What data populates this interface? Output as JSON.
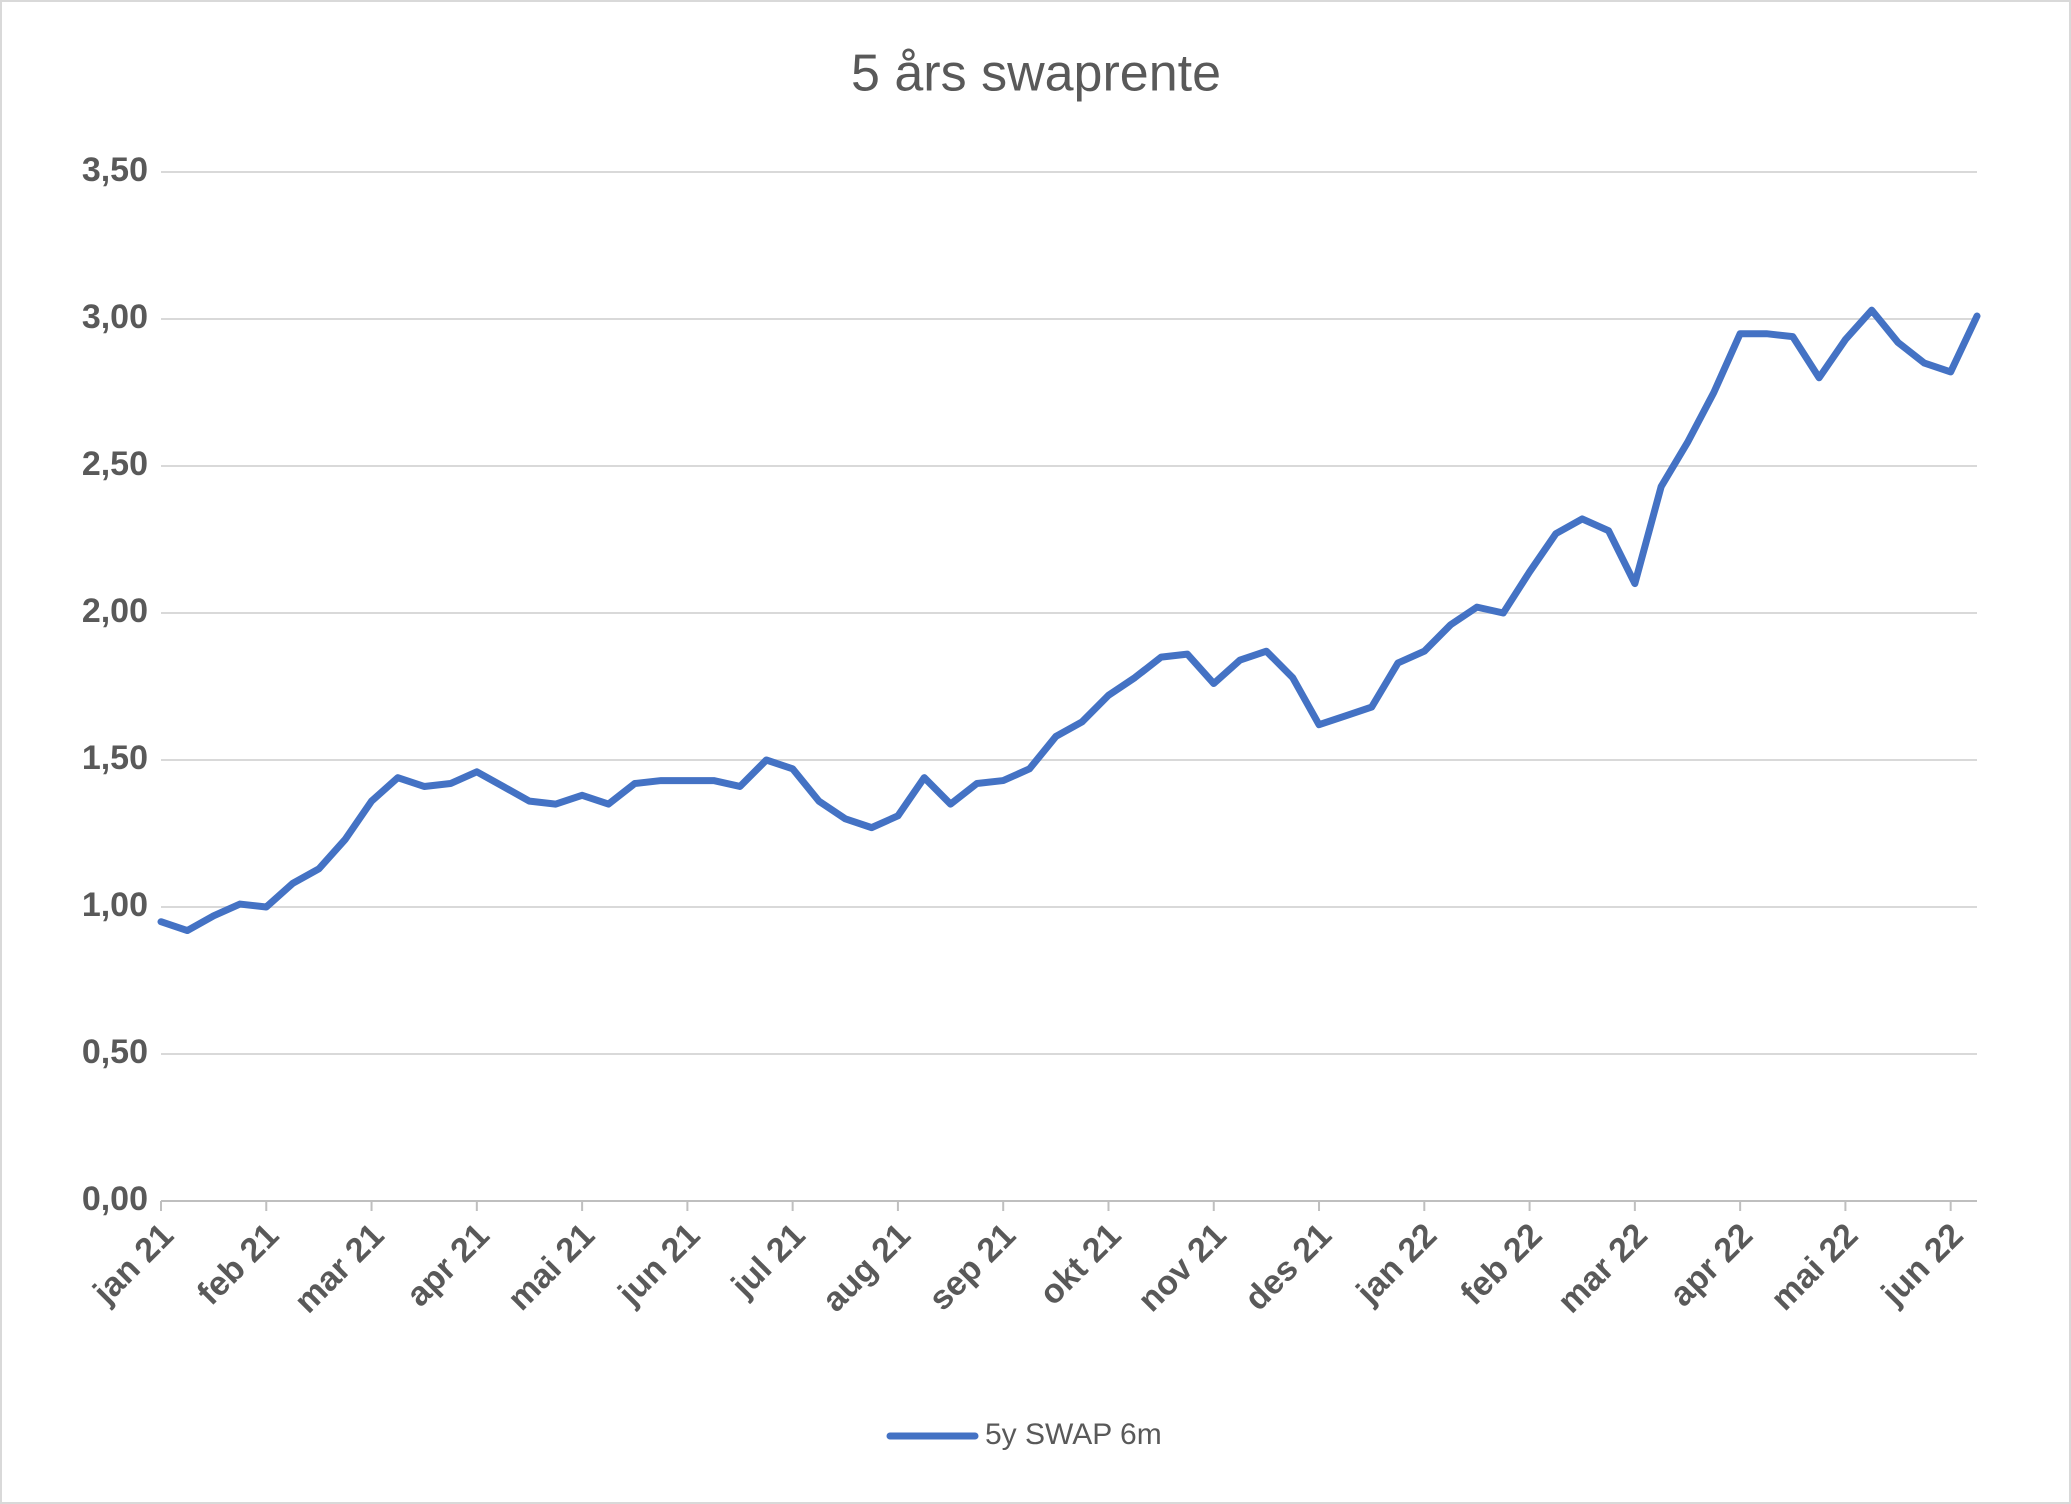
{
  "chart_data": {
    "type": "line",
    "title": "5 års swaprente",
    "categories": [
      "jan 21",
      null,
      null,
      null,
      "feb 21",
      null,
      null,
      null,
      "mar 21",
      null,
      null,
      null,
      "apr 21",
      null,
      null,
      null,
      "mai 21",
      null,
      null,
      null,
      "jun 21",
      null,
      null,
      null,
      "jul 21",
      null,
      null,
      null,
      "aug 21",
      null,
      null,
      null,
      "sep 21",
      null,
      null,
      null,
      "okt 21",
      null,
      null,
      null,
      "nov 21",
      null,
      null,
      null,
      "des 21",
      null,
      null,
      null,
      "jan 22",
      null,
      null,
      null,
      "feb 22",
      null,
      null,
      null,
      "mar 22",
      null,
      null,
      null,
      "apr 22",
      null,
      null,
      null,
      "mai 22",
      null,
      null,
      null,
      "jun 22",
      null
    ],
    "series": [
      {
        "name": "5y SWAP 6m",
        "color": "#4472c4",
        "values": [
          0.95,
          0.92,
          0.97,
          1.01,
          1.0,
          1.08,
          1.13,
          1.23,
          1.36,
          1.44,
          1.41,
          1.42,
          1.46,
          1.41,
          1.36,
          1.35,
          1.38,
          1.35,
          1.42,
          1.43,
          1.43,
          1.43,
          1.41,
          1.5,
          1.47,
          1.36,
          1.3,
          1.27,
          1.31,
          1.44,
          1.35,
          1.42,
          1.43,
          1.47,
          1.58,
          1.63,
          1.72,
          1.78,
          1.85,
          1.86,
          1.76,
          1.84,
          1.87,
          1.78,
          1.62,
          1.65,
          1.68,
          1.83,
          1.87,
          1.96,
          2.02,
          2.0,
          2.14,
          2.27,
          2.32,
          2.28,
          2.1,
          2.43,
          2.58,
          2.75,
          2.95,
          2.95,
          2.94,
          2.8,
          2.93,
          3.03,
          2.92,
          2.85,
          2.82,
          3.01
        ]
      }
    ],
    "ylim": [
      0,
      3.5
    ],
    "yticks": [
      {
        "value": 0,
        "label": "0,00"
      },
      {
        "value": 0.5,
        "label": "0,50"
      },
      {
        "value": 1,
        "label": "1,00"
      },
      {
        "value": 1.5,
        "label": "1,50"
      },
      {
        "value": 2,
        "label": "2,00"
      },
      {
        "value": 2.5,
        "label": "2,50"
      },
      {
        "value": 3,
        "label": "3,00"
      },
      {
        "value": 3.5,
        "label": "3,50"
      }
    ],
    "grid": true,
    "legend": "bottom"
  }
}
